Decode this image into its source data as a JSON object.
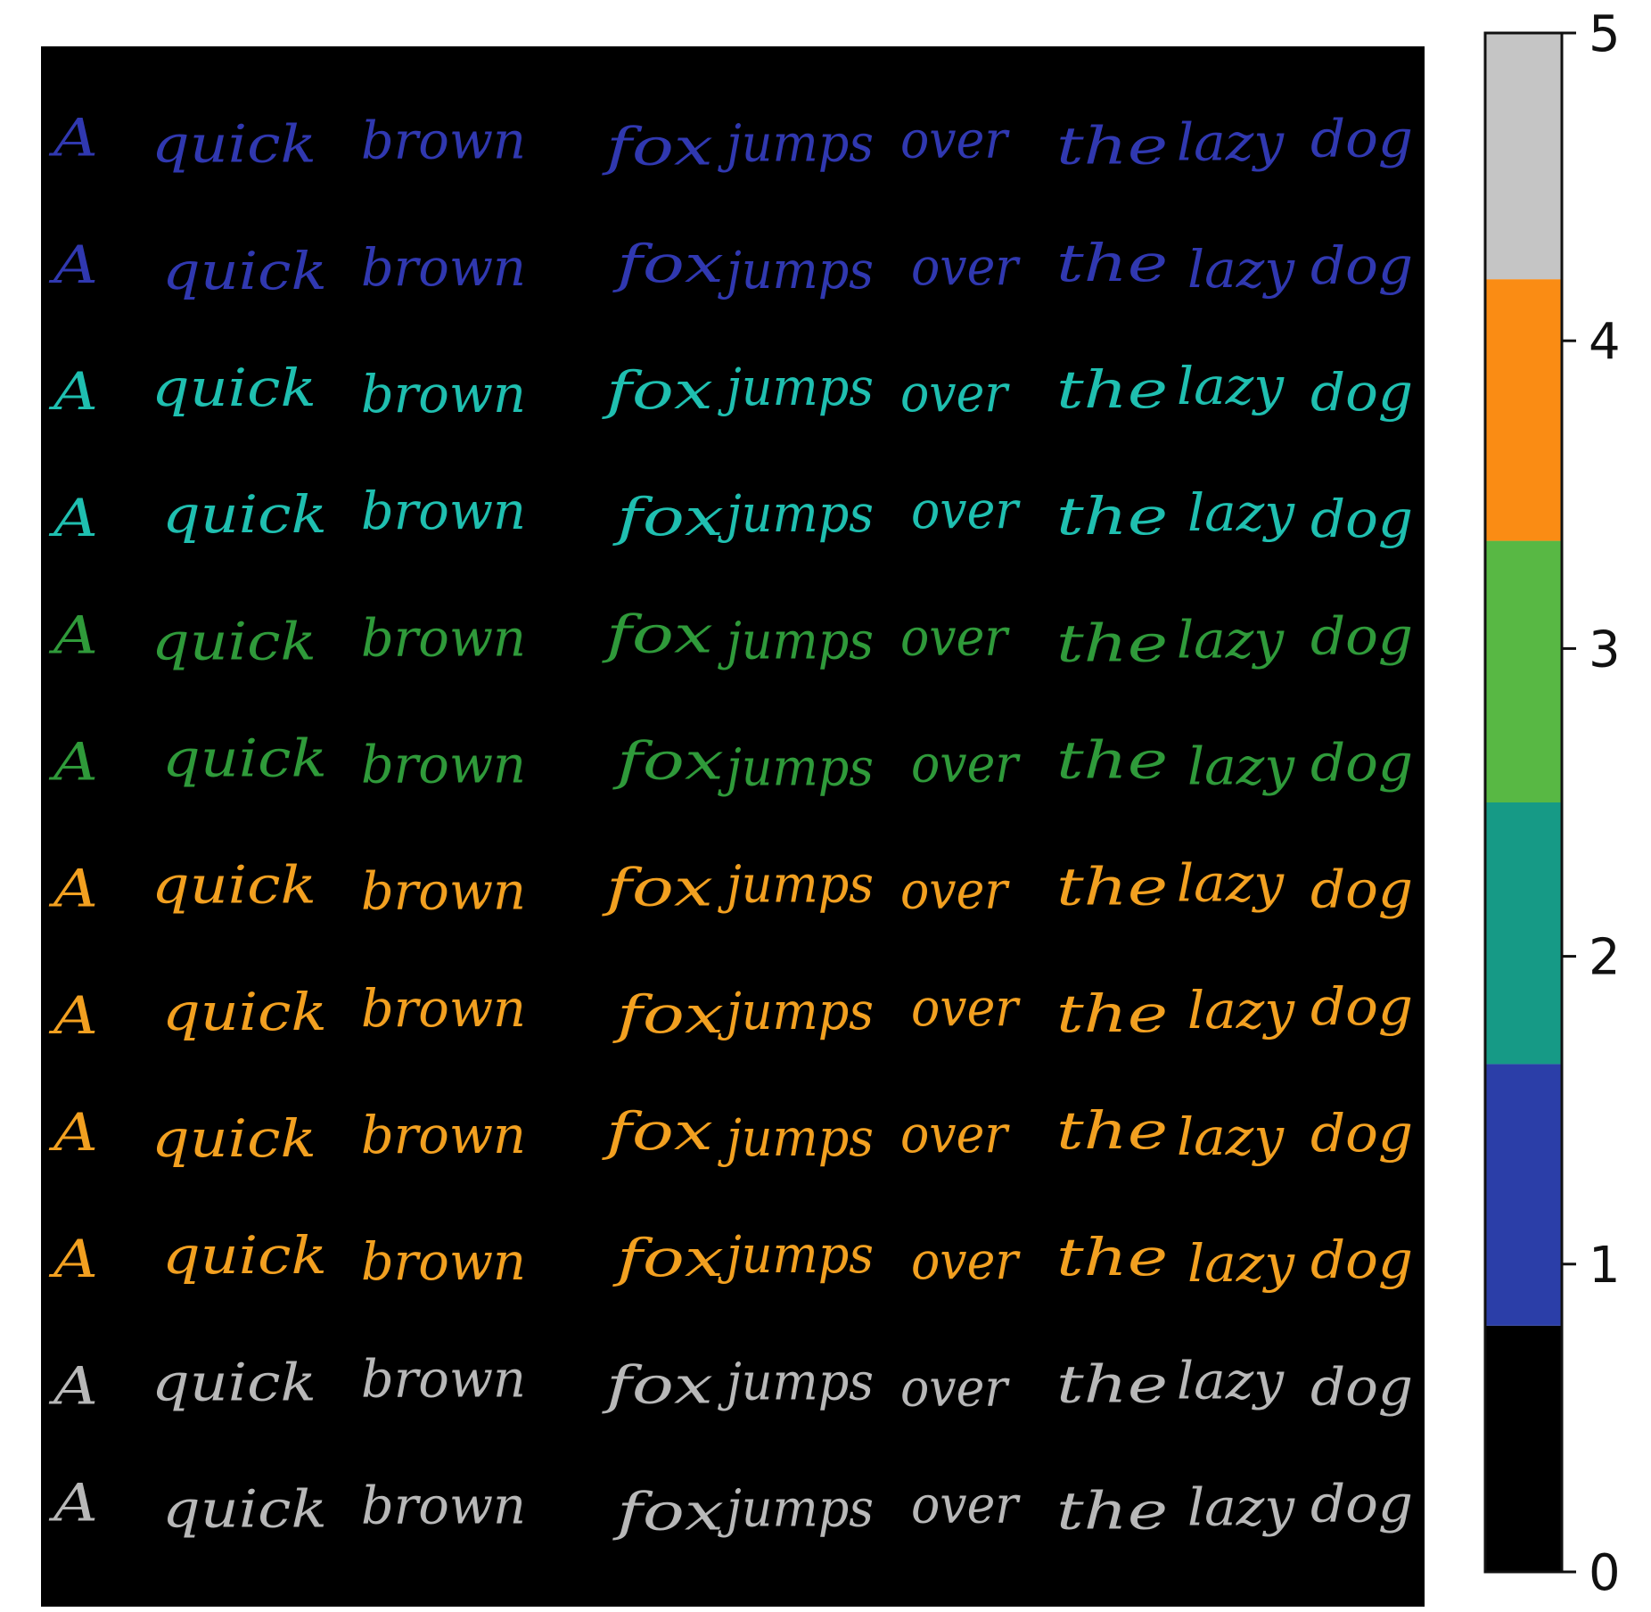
{
  "chart_data": {
    "type": "heatmap",
    "title": "",
    "xlabel": "",
    "ylabel": "",
    "rows": [
      {
        "text": "A quick brown fox jumps over the lazy dog",
        "value": 1
      },
      {
        "text": "A quick brown fox jumps over the lazy dog",
        "value": 1
      },
      {
        "text": "A quick brown fox jumps over the lazy dog",
        "value": 2
      },
      {
        "text": "A quick brown fox jumps over the lazy dog",
        "value": 2
      },
      {
        "text": "A quick brown fox jumps over the lazy dog",
        "value": 3
      },
      {
        "text": "A quick brown fox jumps over the lazy dog",
        "value": 3
      },
      {
        "text": "A quick brown fox jumps over the lazy dog",
        "value": 4
      },
      {
        "text": "A quick brown fox jumps over the lazy dog",
        "value": 4
      },
      {
        "text": "A quick brown fox jumps over the lazy dog",
        "value": 4
      },
      {
        "text": "A quick brown fox jumps over the lazy dog",
        "value": 4
      },
      {
        "text": "A quick brown fox jumps over the lazy dog",
        "value": 5
      },
      {
        "text": "A quick brown fox jumps over the lazy dog",
        "value": 5
      }
    ],
    "colorbar": {
      "range": [
        0,
        5
      ],
      "ticks": [
        "0",
        "1",
        "2",
        "3",
        "4",
        "5"
      ],
      "bands": [
        {
          "from": 0.0,
          "to": 0.8,
          "color": "#000000"
        },
        {
          "from": 0.8,
          "to": 1.65,
          "color": "#2b3ea8"
        },
        {
          "from": 1.65,
          "to": 2.5,
          "color": "#169a86"
        },
        {
          "from": 2.5,
          "to": 3.35,
          "color": "#58b844"
        },
        {
          "from": 3.35,
          "to": 4.2,
          "color": "#fa8c14"
        },
        {
          "from": 4.2,
          "to": 5.0,
          "color": "#c5c5c5"
        }
      ]
    },
    "row_colors": {
      "1": "#3038b0",
      "2": "#1fbfb0",
      "3": "#2f9a3a",
      "4": "#f2a020",
      "5": "#b8b8b8"
    },
    "background": "#000000"
  }
}
